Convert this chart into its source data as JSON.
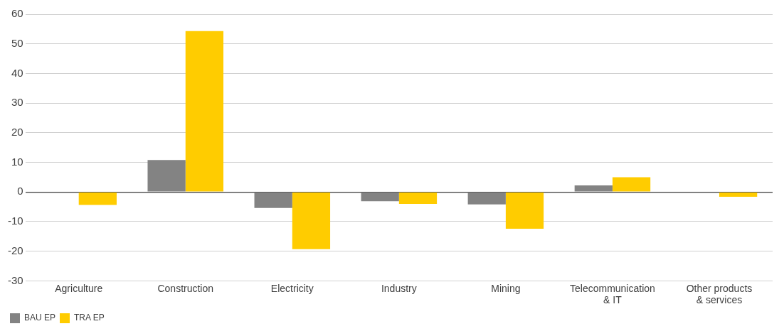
{
  "chart_data": {
    "type": "bar",
    "categories": [
      "Agriculture",
      "Construction",
      "Electricity",
      "Industry",
      "Mining",
      "Telecommunication & IT",
      "Other products & services"
    ],
    "series": [
      {
        "name": "BAU EP",
        "color": "#838383",
        "values": [
          0,
          10.8,
          -5.4,
          -3.1,
          -4.2,
          2.2,
          0
        ]
      },
      {
        "name": "TRA EP",
        "color": "#ffcc00",
        "values": [
          -4.4,
          54.3,
          -19.3,
          -4.0,
          -12.4,
          5.0,
          -1.6
        ]
      }
    ],
    "ylim": [
      -30,
      60
    ],
    "yticks": [
      -30,
      -20,
      -10,
      0,
      10,
      20,
      30,
      40,
      50,
      60
    ],
    "grid": "y",
    "legend": "bottom left"
  }
}
